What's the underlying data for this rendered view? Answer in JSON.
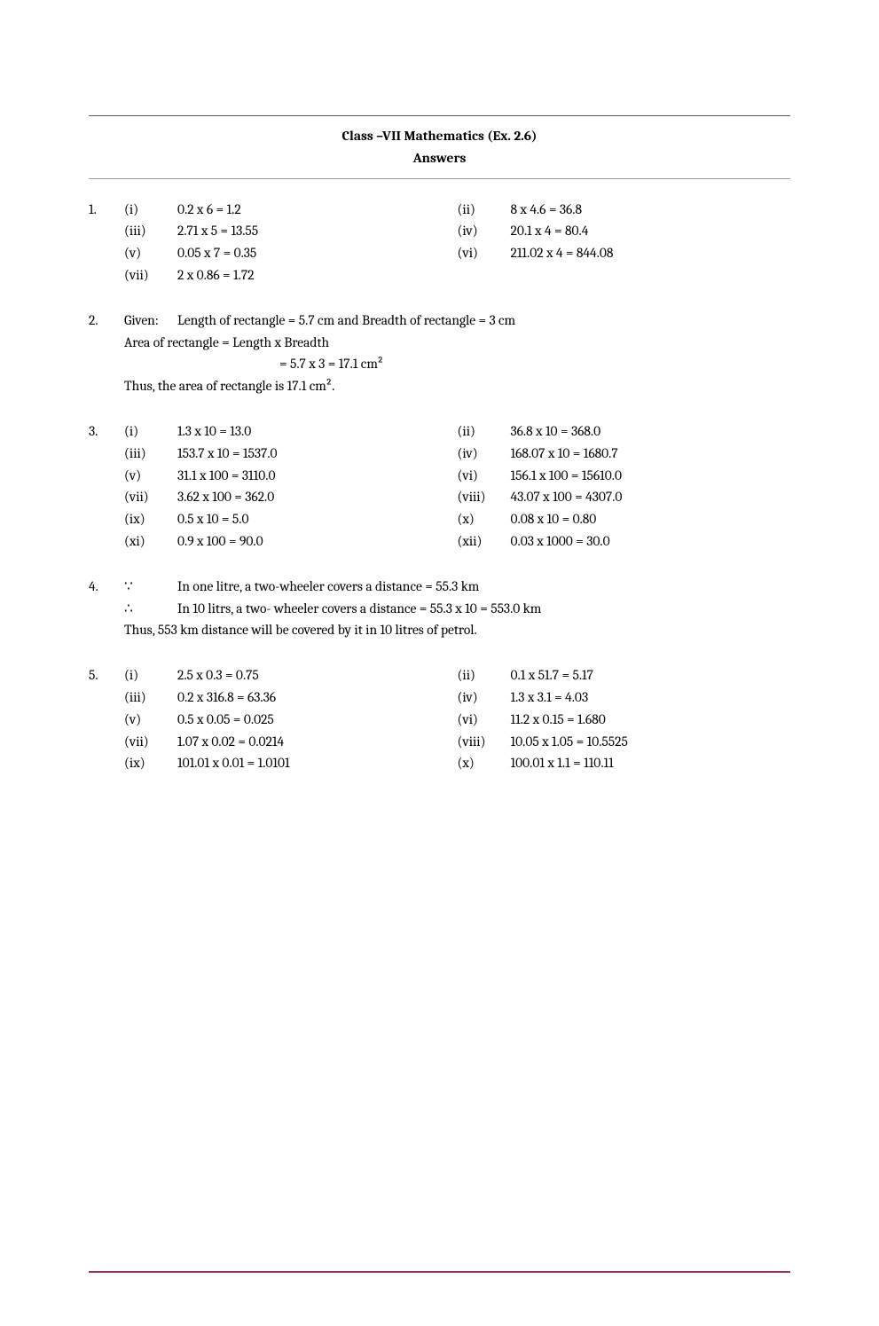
{
  "header": {
    "title": "Class –VII Mathematics (Ex. 2.6)",
    "subtitle": "Answers"
  },
  "q1": {
    "num": "1.",
    "i": {
      "l": "(i)",
      "t": "0.2 x 6 = 1.2"
    },
    "ii": {
      "l": "(ii)",
      "t": "8 x 4.6 = 36.8"
    },
    "iii": {
      "l": "(iii)",
      "t": "2.71 x 5 = 13.55"
    },
    "iv": {
      "l": "(iv)",
      "t": "20.1 x 4 = 80.4"
    },
    "v": {
      "l": "(v)",
      "t": "0.05 x 7 = 0.35"
    },
    "vi": {
      "l": "(vi)",
      "t": "211.02 x 4 = 844.08"
    },
    "vii": {
      "l": "(vii)",
      "t": "2 x 0.86 = 1.72"
    }
  },
  "q2": {
    "num": "2.",
    "given_label": "Given:",
    "line1": "Length of rectangle = 5.7 cm and Breadth of rectangle = 3 cm",
    "line2": "Area of rectangle = Length x Breadth",
    "line3": "= 5.7 x 3 = 17.1 cm²",
    "line4": "Thus, the area of rectangle is 17.1 cm²."
  },
  "q3": {
    "num": "3.",
    "i": {
      "l": "(i)",
      "t": "1.3 x 10 = 13.0"
    },
    "ii": {
      "l": "(ii)",
      "t": "36.8 x 10 = 368.0"
    },
    "iii": {
      "l": "(iii)",
      "t": "153.7 x 10 = 1537.0"
    },
    "iv": {
      "l": "(iv)",
      "t": "168.07 x 10 = 1680.7"
    },
    "v": {
      "l": "(v)",
      "t": "31.1 x 100 = 3110.0"
    },
    "vi": {
      "l": "(vi)",
      "t": "156.1 x 100 = 15610.0"
    },
    "vii": {
      "l": "(vii)",
      "t": "3.62 x 100 = 362.0"
    },
    "viii": {
      "l": "(viii)",
      "t": "43.07 x 100 = 4307.0"
    },
    "ix": {
      "l": "(ix)",
      "t": "0.5 x 10 = 5.0"
    },
    "x": {
      "l": "(x)",
      "t": "0.08 x 10 = 0.80"
    },
    "xi": {
      "l": "(xi)",
      "t": "0.9 x 100 = 90.0"
    },
    "xii": {
      "l": "(xii)",
      "t": "0.03 x 1000 = 30.0"
    }
  },
  "q4": {
    "num": "4.",
    "because": "∵",
    "therefore": "∴",
    "line1": "In one litre, a two-wheeler covers a distance = 55.3 km",
    "line2": "In 10 litrs, a two- wheeler covers a distance = 55.3 x 10 = 553.0 km",
    "line3": "Thus, 553 km distance will be covered by it in 10 litres of petrol."
  },
  "q5": {
    "num": "5.",
    "i": {
      "l": "(i)",
      "t": "2.5 x 0.3 = 0.75"
    },
    "ii": {
      "l": "(ii)",
      "t": "0.1 x 51.7 = 5.17"
    },
    "iii": {
      "l": "(iii)",
      "t": "0.2 x 316.8 = 63.36"
    },
    "iv": {
      "l": "(iv)",
      "t": "1.3 x 3.1 = 4.03"
    },
    "v": {
      "l": "(v)",
      "t": "0.5 x 0.05 = 0.025"
    },
    "vi": {
      "l": "(vi)",
      "t": "11.2 x 0.15 = 1.680"
    },
    "vii": {
      "l": "(vii)",
      "t": "1.07 x 0.02 = 0.0214"
    },
    "viii": {
      "l": "(viii)",
      "t": "10.05 x 1.05 = 10.5525"
    },
    "ix": {
      "l": "(ix)",
      "t": "101.01 x 0.01 = 1.0101"
    },
    "x": {
      "l": "(x)",
      "t": "100.01 x 1.1 = 110.11"
    }
  },
  "style": {
    "background_color": "#ffffff",
    "text_color": "#000000",
    "rule_color": "#555555",
    "bottom_rule_color": "#a03050",
    "font_family": "Cambria, Georgia, serif",
    "body_fontsize_pt": 12,
    "title_fontweight": "bold"
  }
}
